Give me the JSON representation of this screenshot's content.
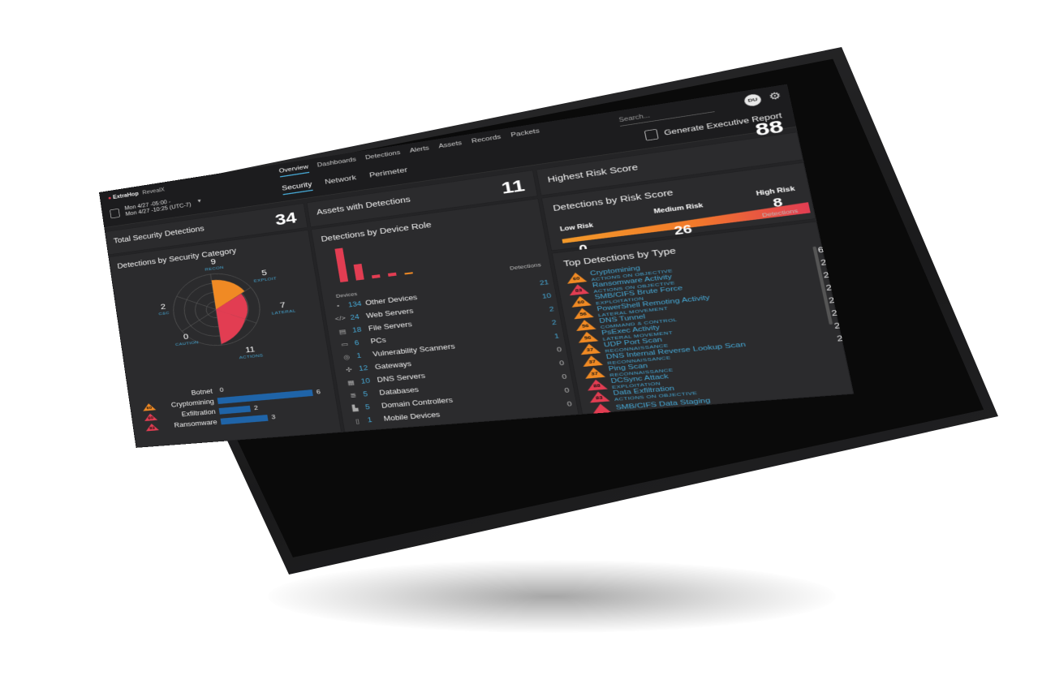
{
  "header": {
    "brand": "ExtraHop",
    "tenant": "RevealX",
    "time_range_line1": "Mon 4/27 -05:00 -",
    "time_range_line2": "Mon 4/27 -10:25 (UTC-7)",
    "top_nav": [
      "Overview",
      "Dashboards",
      "Detections",
      "Alerts",
      "Assets",
      "Records",
      "Packets"
    ],
    "top_nav_active": "Overview",
    "sub_nav": [
      "Security",
      "Network",
      "Perimeter"
    ],
    "sub_nav_active": "Security",
    "search_placeholder": "Search...",
    "avatar_initials": "DU",
    "report_button": "Generate Executive Report"
  },
  "total_security_detections": {
    "title": "Total Security Detections",
    "value": "34"
  },
  "detections_by_category": {
    "title": "Detections by Security Category",
    "categories": [
      {
        "label": "RECON",
        "value": "9"
      },
      {
        "label": "EXPLOIT",
        "value": "5"
      },
      {
        "label": "LATERAL",
        "value": "7"
      },
      {
        "label": "ACTIONS",
        "value": "11"
      },
      {
        "label": "CAUTION",
        "value": "0"
      },
      {
        "label": "C&C",
        "value": "2"
      }
    ],
    "bars": [
      {
        "label": "Botnet",
        "value": "0",
        "score": "",
        "severity": "none"
      },
      {
        "label": "Cryptomining",
        "value": "6",
        "score": "60",
        "severity": "orange"
      },
      {
        "label": "Exfiltration",
        "value": "2",
        "score": "60",
        "severity": "red"
      },
      {
        "label": "Ransomware",
        "value": "3",
        "score": "83",
        "severity": "red"
      }
    ]
  },
  "assets_with_detections": {
    "title": "Assets with Detections",
    "value": "11"
  },
  "detections_by_device_role": {
    "title": "Detections by Device Role",
    "devices_header": "Devices",
    "detections_header": "Detections",
    "rows": [
      {
        "icon": "•",
        "count": "134",
        "name": "Other Devices",
        "detections": "21"
      },
      {
        "icon": "</>",
        "count": "24",
        "name": "Web Servers",
        "detections": "10"
      },
      {
        "icon": "▤",
        "count": "18",
        "name": "File Servers",
        "detections": "2"
      },
      {
        "icon": "▭",
        "count": "6",
        "name": "PCs",
        "detections": "2"
      },
      {
        "icon": "◎",
        "count": "1",
        "name": "Vulnerability Scanners",
        "detections": "1"
      },
      {
        "icon": "✣",
        "count": "12",
        "name": "Gateways",
        "detections": "0"
      },
      {
        "icon": "▦",
        "count": "10",
        "name": "DNS Servers",
        "detections": "0"
      },
      {
        "icon": "≣",
        "count": "5",
        "name": "Databases",
        "detections": "0"
      },
      {
        "icon": "▙",
        "count": "5",
        "name": "Domain Controllers",
        "detections": "0"
      },
      {
        "icon": "▯",
        "count": "1",
        "name": "Mobile Devices",
        "detections": "0"
      }
    ]
  },
  "highest_risk_score": {
    "title": "Highest Risk Score",
    "value": "88"
  },
  "detections_by_risk_score": {
    "title": "Detections by Risk Score",
    "low_label": "Low Risk",
    "medium_label": "Medium Risk",
    "high_label": "High Risk",
    "low_value": "0",
    "medium_value": "26",
    "high_value": "8",
    "unit_label": "Detections"
  },
  "top_detections_by_type": {
    "title": "Top Detections by Type",
    "rows": [
      {
        "score": "60",
        "severity": "orange",
        "name": "Cryptomining",
        "category": "ACTIONS ON OBJECTIVE",
        "value": "6"
      },
      {
        "score": "83",
        "severity": "red",
        "name": "Ransomware Activity",
        "category": "ACTIONS ON OBJECTIVE",
        "value": "2"
      },
      {
        "score": "60",
        "severity": "orange",
        "name": "SMB/CIFS Brute Force",
        "category": "EXPLOITATION",
        "value": "2"
      },
      {
        "score": "56",
        "severity": "orange",
        "name": "PowerShell Remoting Activity",
        "category": "LATERAL MOVEMENT",
        "value": "2"
      },
      {
        "score": "56",
        "severity": "orange",
        "name": "DNS Tunnel",
        "category": "COMMAND & CONTROL",
        "value": "2"
      },
      {
        "score": "56",
        "severity": "orange",
        "name": "PsExec Activity",
        "category": "LATERAL MOVEMENT",
        "value": "2"
      },
      {
        "score": "37",
        "severity": "orange",
        "name": "UDP Port Scan",
        "category": "RECONNAISSANCE",
        "value": "2"
      },
      {
        "score": "37",
        "severity": "orange",
        "name": "DNS Internal Reverse Lookup Scan",
        "category": "RECONNAISSANCE",
        "value": "2"
      },
      {
        "score": "37",
        "severity": "orange",
        "name": "Ping Scan",
        "category": "RECONNAISSANCE",
        "value": ""
      },
      {
        "score": "88",
        "severity": "red",
        "name": "DCSync Attack",
        "category": "EXPLOITATION",
        "value": ""
      },
      {
        "score": "83",
        "severity": "red",
        "name": "Data Exfiltration",
        "category": "ACTIONS ON OBJECTIVE",
        "value": ""
      },
      {
        "score": "",
        "severity": "red",
        "name": "SMB/CIFS Data Staging",
        "category": "",
        "value": ""
      }
    ]
  },
  "colors": {
    "accent": "#46a9d6",
    "orange": "#f08a24",
    "red": "#e23d52",
    "bar_blue": "#1f64a8",
    "panel": "#2b2b2d"
  }
}
